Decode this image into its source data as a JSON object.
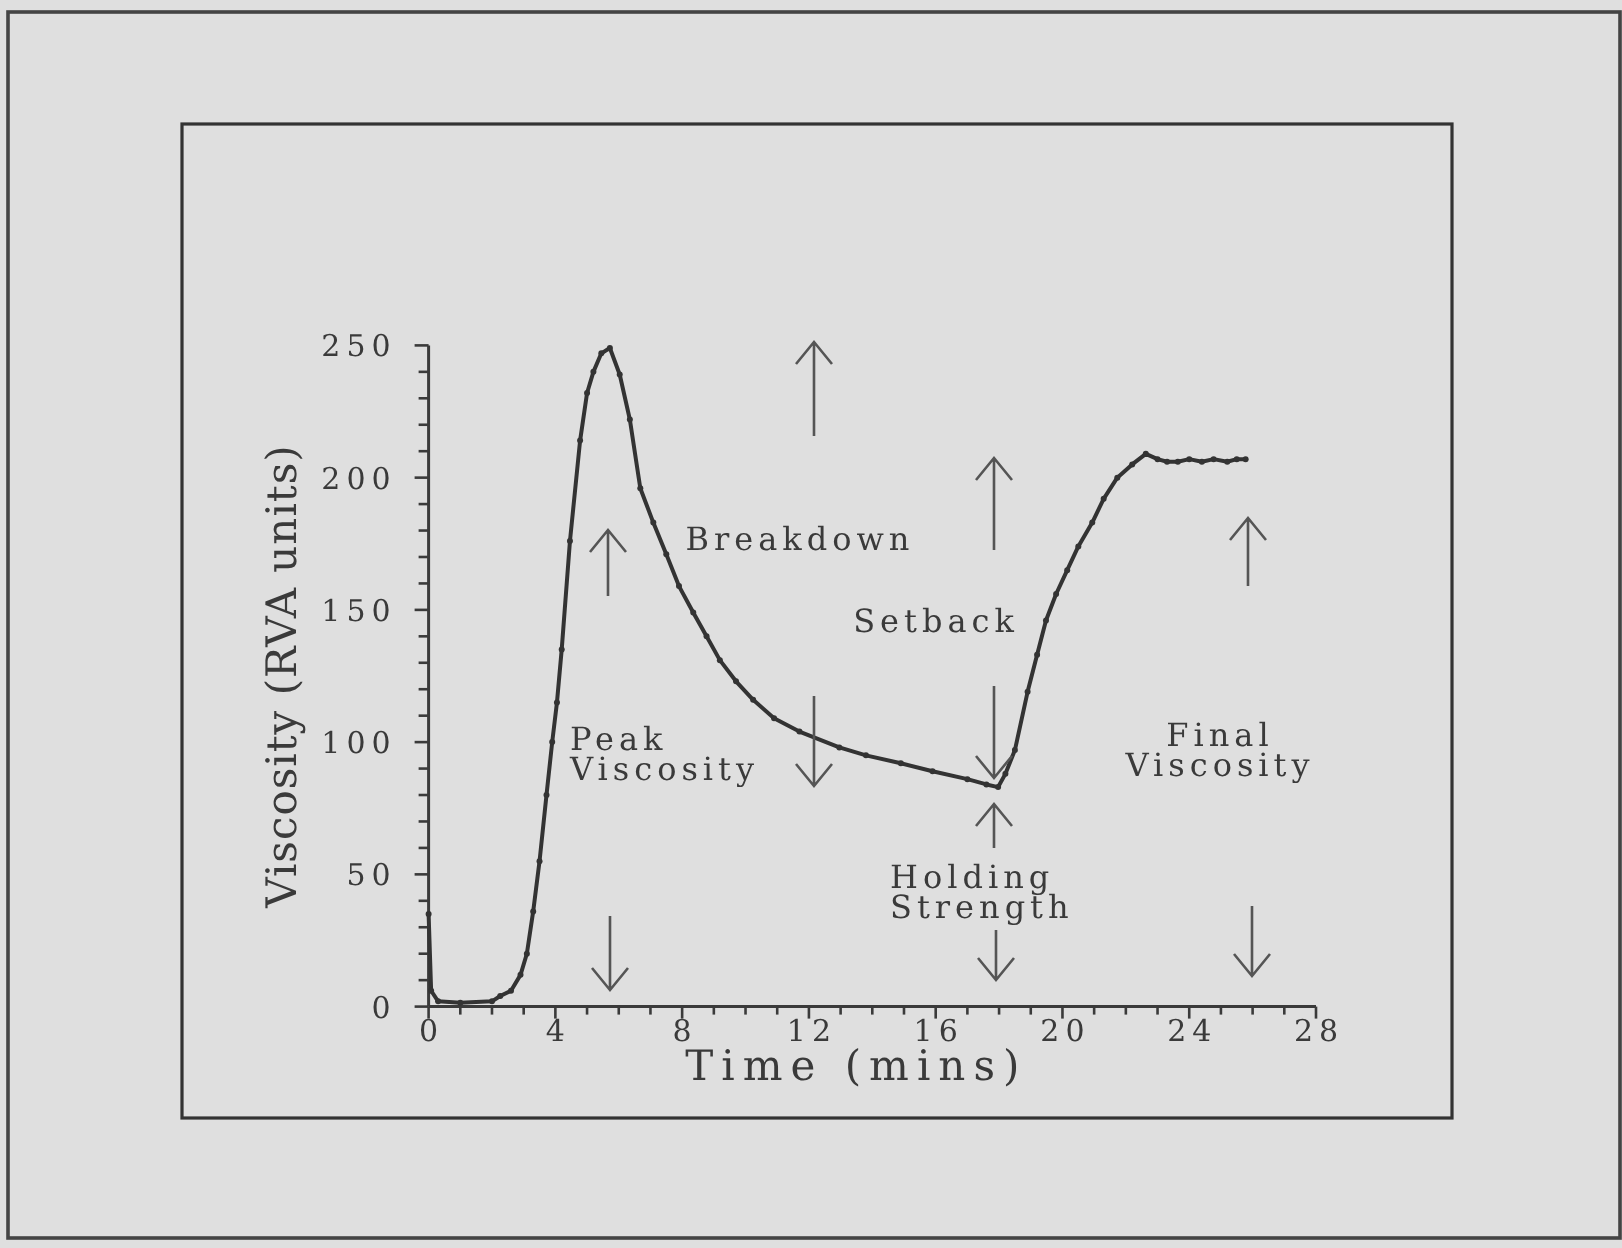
{
  "chart_data": {
    "type": "line",
    "xlabel": "Time (mins)",
    "ylabel": "Viscosity (RVA units)",
    "x": [
      0,
      0.08,
      0.3,
      1,
      2,
      2.26,
      2.6,
      2.9,
      3.1,
      3.3,
      3.5,
      3.72,
      3.9,
      4.05,
      4.2,
      4.46,
      4.78,
      5,
      5.2,
      5.45,
      5.72,
      6.03,
      6.35,
      6.68,
      7.09,
      7.5,
      7.9,
      8.35,
      8.77,
      9.19,
      9.7,
      10.24,
      10.9,
      11.7,
      12.96,
      13.8,
      14.9,
      15.9,
      17,
      17.6,
      17.97,
      18.2,
      18.5,
      18.9,
      19.2,
      19.48,
      19.8,
      20.15,
      20.5,
      20.94,
      21.3,
      21.73,
      22.2,
      22.63,
      23,
      23.3,
      23.64,
      24,
      24.4,
      24.77,
      25.2,
      25.5,
      25.78
    ],
    "series": [
      {
        "color": "#333333",
        "values": [
          35,
          6,
          2,
          1.5,
          2,
          4,
          6,
          12,
          20,
          36,
          55,
          80,
          100,
          115,
          135,
          176,
          214,
          232,
          240,
          247,
          249,
          239,
          222,
          196,
          183,
          171,
          159,
          149,
          140,
          131,
          123,
          116,
          109,
          104,
          98,
          95,
          92,
          89,
          86,
          84,
          83,
          88,
          97,
          119,
          133,
          146,
          156,
          165,
          174,
          183,
          192,
          200,
          205,
          209,
          207,
          206,
          206,
          207,
          206,
          207,
          206,
          207,
          207
        ]
      }
    ],
    "marker": "circle",
    "xlim": [
      0,
      28
    ],
    "ylim": [
      0,
      250
    ],
    "xticks": [
      0,
      {
        "value": 1,
        "label": null
      },
      {
        "value": 2,
        "label": null
      },
      {
        "value": 3,
        "label": null
      },
      4,
      {
        "value": 5,
        "label": null
      },
      {
        "value": 6,
        "label": null
      },
      {
        "value": 7,
        "label": null
      },
      8,
      {
        "value": 9,
        "label": null
      },
      {
        "value": 10,
        "label": null
      },
      {
        "value": 11,
        "label": null
      },
      12,
      {
        "value": 13,
        "label": null
      },
      {
        "value": 14,
        "label": null
      },
      {
        "value": 15,
        "label": null
      },
      16,
      {
        "value": 17,
        "label": null
      },
      {
        "value": 18,
        "label": null
      },
      {
        "value": 19,
        "label": null
      },
      20,
      {
        "value": 21,
        "label": null
      },
      {
        "value": 22,
        "label": null
      },
      {
        "value": 23,
        "label": null
      },
      24,
      {
        "value": 25,
        "label": null
      },
      {
        "value": 26,
        "label": null
      },
      {
        "value": 27,
        "label": null
      },
      28
    ],
    "yticks": [
      0,
      {
        "value": 10,
        "label": null
      },
      {
        "value": 20,
        "label": null
      },
      {
        "value": 30,
        "label": null
      },
      {
        "value": 40,
        "label": null
      },
      50,
      {
        "value": 60,
        "label": null
      },
      {
        "value": 70,
        "label": null
      },
      {
        "value": 80,
        "label": null
      },
      {
        "value": 90,
        "label": null
      },
      100,
      {
        "value": 110,
        "label": null
      },
      {
        "value": 120,
        "label": null
      },
      {
        "value": 130,
        "label": null
      },
      {
        "value": 140,
        "label": null
      },
      150,
      {
        "value": 160,
        "label": null
      },
      {
        "value": 170,
        "label": null
      },
      {
        "value": 180,
        "label": null
      },
      {
        "value": 190,
        "label": null
      },
      200,
      {
        "value": 210,
        "label": null
      },
      {
        "value": 220,
        "label": null
      },
      {
        "value": 230,
        "label": null
      },
      {
        "value": 240,
        "label": null
      },
      250
    ],
    "annotations": [
      "Breakdown",
      "Setback",
      "Peak Viscosity",
      "Final Viscosity",
      "Holding Strength"
    ]
  }
}
